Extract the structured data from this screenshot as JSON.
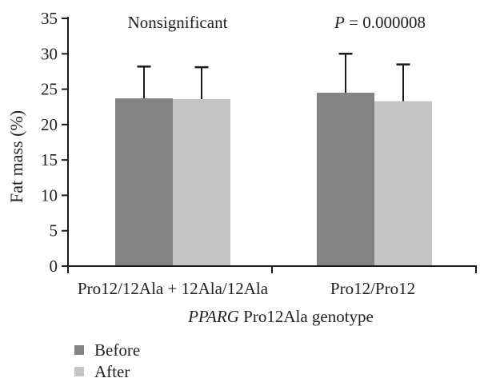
{
  "chart_data": {
    "type": "bar",
    "ylabel": "Fat mass (%)",
    "xlabel_italic": "PPARG",
    "xlabel_rest": " Pro12Ala genotype",
    "categories": [
      "Pro12/12Ala + 12Ala/12Ala",
      "Pro12/Pro12"
    ],
    "series": [
      {
        "name": "Before",
        "color": "#838383",
        "values": [
          23.7,
          24.5
        ],
        "errors": [
          4.5,
          5.5
        ]
      },
      {
        "name": "After",
        "color": "#c4c4c4",
        "values": [
          23.6,
          23.3
        ],
        "errors": [
          4.5,
          5.2
        ]
      }
    ],
    "ylim": [
      0,
      35
    ],
    "yticks": [
      0,
      5,
      10,
      15,
      20,
      25,
      30,
      35
    ],
    "annotations": [
      {
        "italic": "",
        "text": "Nonsignificant"
      },
      {
        "italic": "P",
        "text": " = 0.000008"
      }
    ],
    "legend_position": "bottom-left",
    "grid": "off",
    "axis_color": "#1a1a1a",
    "text_color": "#1f1f1f"
  }
}
